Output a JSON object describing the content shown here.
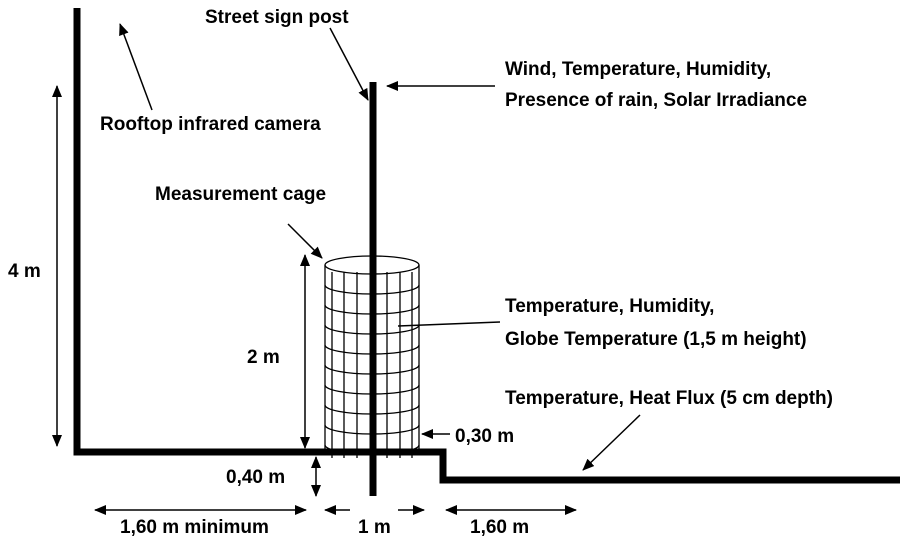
{
  "labels": {
    "street_sign_post": "Street sign post",
    "wind_line1": "Wind, Temperature, Humidity,",
    "wind_line2": "Presence of rain, Solar Irradiance",
    "rooftop_camera": "Rooftop infrared camera",
    "measurement_cage": "Measurement cage",
    "cage_line1": "Temperature, Humidity,",
    "cage_line2": "Globe Temperature (1,5 m height)",
    "ground": "Temperature, Heat Flux (5 cm depth)"
  },
  "dimensions": {
    "wall_height": "4 m",
    "cage_height": "2 m",
    "cage_offset": "0,30 m",
    "step_height": "0,40 m",
    "left_width": "1,60 m minimum",
    "middle_width": "1 m",
    "right_width": "1,60 m"
  }
}
